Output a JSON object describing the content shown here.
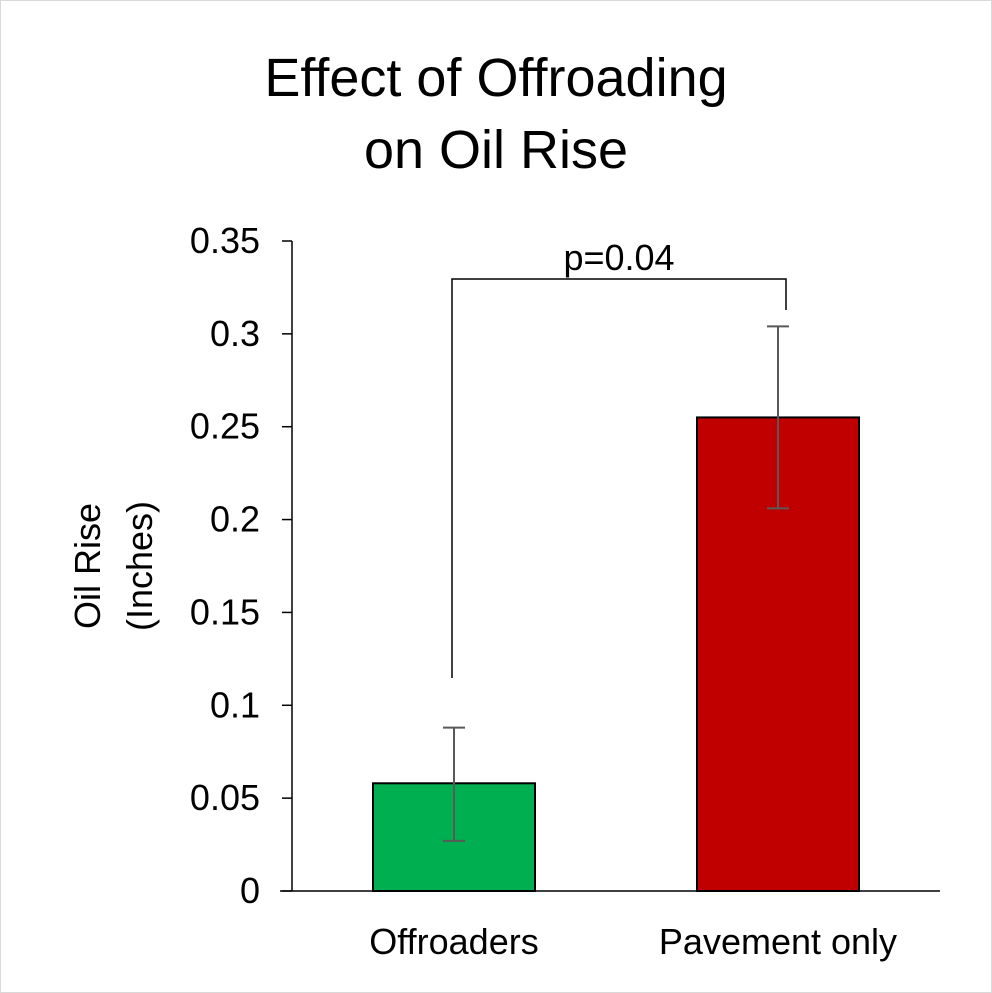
{
  "chart_data": {
    "type": "bar",
    "title_lines": [
      "Effect of Offroading",
      "on Oil Rise"
    ],
    "ylabel_lines": [
      "Oil Rise",
      "(Inches)"
    ],
    "xlabel": "",
    "categories": [
      "Offroaders",
      "Pavement only"
    ],
    "values": [
      0.058,
      0.255
    ],
    "error_low": [
      0.027,
      0.206
    ],
    "error_high": [
      0.088,
      0.304
    ],
    "colors": [
      "#00b050",
      "#c00000"
    ],
    "ylim": [
      0,
      0.35
    ],
    "yticks": [
      0,
      0.05,
      0.1,
      0.15,
      0.2,
      0.25,
      0.3,
      0.35
    ],
    "ytick_labels": [
      "0",
      "0.05",
      "0.1",
      "0.15",
      "0.2",
      "0.25",
      "0.3",
      "0.35"
    ],
    "grid": false,
    "legend": "none",
    "annotation": {
      "text": "p=0.04",
      "between": [
        "Offroaders",
        "Pavement only"
      ]
    }
  }
}
